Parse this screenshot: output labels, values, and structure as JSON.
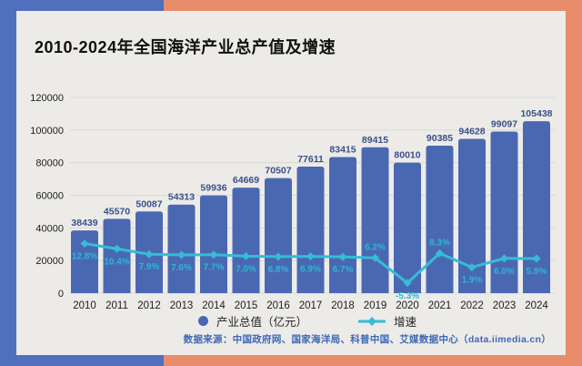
{
  "page": {
    "title": "2010-2024年全国海洋产业总产值及增速",
    "source": "数据来源：中国政府网、国家海洋局、科普中国、艾媒数据中心（data.iimedia.cn）"
  },
  "legend": {
    "bar_label": "产业总值（亿元）",
    "line_label": "增速"
  },
  "colors": {
    "bg_left_blue": "#5070BD",
    "bg_right_orange": "#E88C6B",
    "card": "#ECEBE8",
    "bar": "#4A68B2",
    "bar_value_label": "#3A5089",
    "line": "#35BCD6",
    "rate_label": "#2EB5D5",
    "grid": "#D9D8D4",
    "axis_text": "#1D1D1D",
    "title_text": "#101010",
    "source_text": "#4068B5",
    "legend_text": "#222222"
  },
  "chart_data": {
    "type": "bar+line",
    "title": "2010-2024年全国海洋产业总产值及增速",
    "categories": [
      "2010",
      "2011",
      "2012",
      "2013",
      "2014",
      "2015",
      "2016",
      "2017",
      "2018",
      "2019",
      "2020",
      "2021",
      "2022",
      "2023",
      "2024"
    ],
    "series": [
      {
        "name": "产业总值（亿元）",
        "type": "bar",
        "values": [
          38439,
          45570,
          50087,
          54313,
          59936,
          64669,
          70507,
          77611,
          83415,
          89415,
          80010,
          90385,
          94628,
          99097,
          105438
        ]
      },
      {
        "name": "增速",
        "type": "line",
        "unit": "%",
        "values": [
          12.8,
          10.4,
          7.9,
          7.6,
          7.7,
          7.0,
          6.8,
          6.9,
          6.7,
          6.2,
          -5.3,
          8.3,
          1.9,
          6.0,
          5.9
        ],
        "value_labels": [
          "12.8%",
          "10.4%",
          "7.9%",
          "7.6%",
          "7.7%",
          "7.0%",
          "6.8%",
          "6.9%",
          "6.7%",
          "6.2%",
          "-5.3%",
          "8.3%",
          "1.9%",
          "6.0%",
          "5.9%"
        ],
        "labels_above_indices": [
          9,
          11
        ]
      }
    ],
    "xlabel": "",
    "ylabel": "",
    "ylim": [
      0,
      120000
    ],
    "y_ticks": [
      0,
      20000,
      40000,
      60000,
      80000,
      100000,
      120000
    ],
    "secondary_ylim": [
      -10,
      80
    ],
    "grid": true,
    "legend_position": "bottom"
  }
}
